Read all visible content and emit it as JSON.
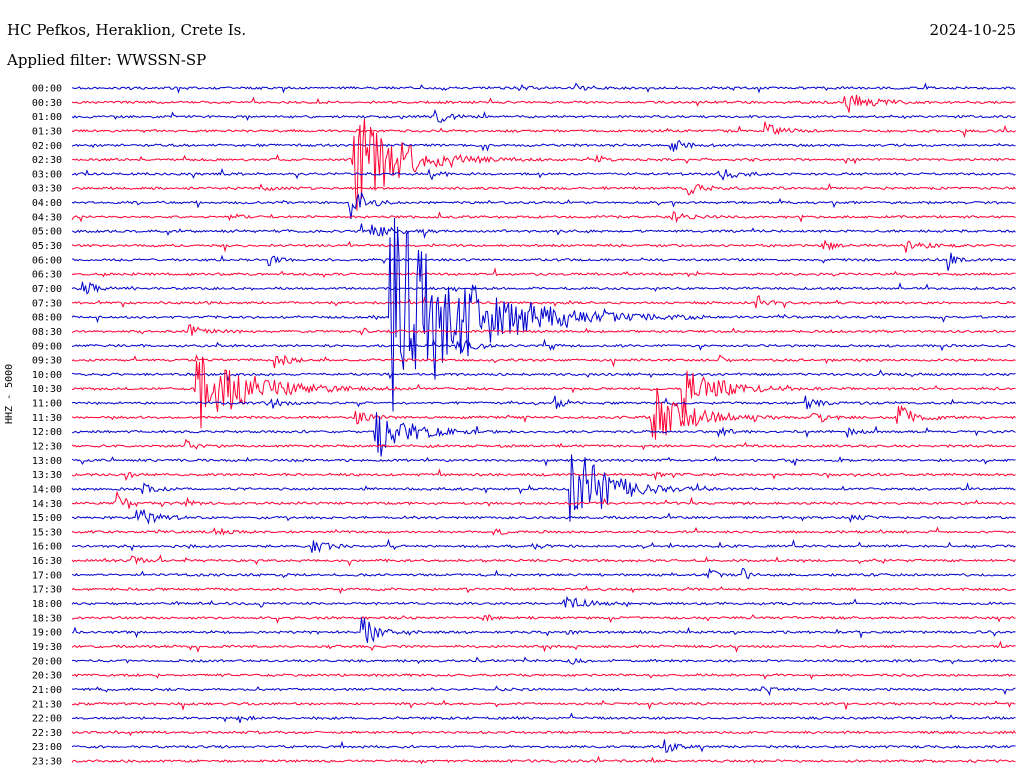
{
  "header": {
    "station": "HC Pefkos, Heraklion, Crete Is.",
    "date": "2024-10-25",
    "filter": "Applied filter: WWSSN-SP",
    "channel": "HHZ - 5000"
  },
  "chart_data": {
    "type": "line",
    "title": "HC Pefkos, Heraklion, Crete Is.",
    "subtitle": "Applied filter: WWSSN-SP",
    "ylabel": "HHZ - 5000",
    "colors": {
      "even": "#0000cc",
      "odd": "#ff0033"
    },
    "rows": [
      "00:00",
      "00:30",
      "01:00",
      "01:30",
      "02:00",
      "02:30",
      "03:00",
      "03:30",
      "04:00",
      "04:30",
      "05:00",
      "05:30",
      "06:00",
      "06:30",
      "07:00",
      "07:30",
      "08:00",
      "08:30",
      "09:00",
      "09:30",
      "10:00",
      "10:30",
      "11:00",
      "11:30",
      "12:00",
      "12:30",
      "13:00",
      "13:30",
      "14:00",
      "14:30",
      "15:00",
      "15:30",
      "16:00",
      "16:30",
      "17:00",
      "17:30",
      "18:00",
      "18:30",
      "19:00",
      "19:30",
      "20:00",
      "20:30",
      "21:00",
      "21:30",
      "22:00",
      "22:30",
      "23:00",
      "23:30"
    ],
    "events": [
      {
        "row": 0,
        "min": 14,
        "amp": 0.3,
        "dur": 0.4
      },
      {
        "row": 0,
        "min": 16,
        "amp": 0.25,
        "dur": 0.4
      },
      {
        "row": 1,
        "min": 24.5,
        "amp": 0.9,
        "dur": 0.8
      },
      {
        "row": 2,
        "min": 11.5,
        "amp": 0.6,
        "dur": 0.5
      },
      {
        "row": 3,
        "min": 22,
        "amp": 0.7,
        "dur": 0.5
      },
      {
        "row": 4,
        "min": 19,
        "amp": 0.5,
        "dur": 0.5
      },
      {
        "row": 5,
        "min": 8.9,
        "amp": 4.5,
        "dur": 1.5
      },
      {
        "row": 5,
        "min": 16.5,
        "amp": 0.4,
        "dur": 0.3
      },
      {
        "row": 6,
        "min": 11.3,
        "amp": 0.5,
        "dur": 0.4
      },
      {
        "row": 6,
        "min": 20.5,
        "amp": 0.6,
        "dur": 0.6
      },
      {
        "row": 7,
        "min": 6,
        "amp": 0.4,
        "dur": 0.3
      },
      {
        "row": 7,
        "min": 19.5,
        "amp": 0.5,
        "dur": 0.6
      },
      {
        "row": 8,
        "min": 8.8,
        "amp": 2.5,
        "dur": 0.4
      },
      {
        "row": 9,
        "min": 5,
        "amp": 0.3,
        "dur": 0.3
      },
      {
        "row": 9,
        "min": 19,
        "amp": 0.5,
        "dur": 0.5
      },
      {
        "row": 10,
        "min": 9.2,
        "amp": 0.8,
        "dur": 0.8
      },
      {
        "row": 11,
        "min": 23.8,
        "amp": 0.4,
        "dur": 0.5
      },
      {
        "row": 11,
        "min": 26.5,
        "amp": 0.5,
        "dur": 0.6
      },
      {
        "row": 12,
        "min": 6.2,
        "amp": 0.5,
        "dur": 0.3
      },
      {
        "row": 12,
        "min": 27.8,
        "amp": 1.2,
        "dur": 0.2
      },
      {
        "row": 14,
        "min": 0.3,
        "amp": 0.6,
        "dur": 0.5
      },
      {
        "row": 15,
        "min": 21.7,
        "amp": 0.7,
        "dur": 0.4
      },
      {
        "row": 16,
        "min": 10.1,
        "amp": 9.0,
        "dur": 2.5
      },
      {
        "row": 16,
        "min": 11.8,
        "amp": 0.5,
        "dur": 0.5
      },
      {
        "row": 17,
        "min": 3.7,
        "amp": 0.6,
        "dur": 0.5
      },
      {
        "row": 18,
        "min": 12.2,
        "amp": 0.8,
        "dur": 0.5
      },
      {
        "row": 18,
        "min": 15,
        "amp": 0.5,
        "dur": 0.4
      },
      {
        "row": 19,
        "min": 6.4,
        "amp": 0.8,
        "dur": 0.4
      },
      {
        "row": 19,
        "min": 20.5,
        "amp": 0.4,
        "dur": 0.3
      },
      {
        "row": 21,
        "min": 3.9,
        "amp": 3.2,
        "dur": 1.8
      },
      {
        "row": 21,
        "min": 19.4,
        "amp": 2.0,
        "dur": 1.2
      },
      {
        "row": 22,
        "min": 6.3,
        "amp": 0.5,
        "dur": 0.4
      },
      {
        "row": 22,
        "min": 15.3,
        "amp": 0.6,
        "dur": 0.4
      },
      {
        "row": 22,
        "min": 23.3,
        "amp": 0.5,
        "dur": 0.4
      },
      {
        "row": 23,
        "min": 18.4,
        "amp": 2.5,
        "dur": 1.2
      },
      {
        "row": 23,
        "min": 23.5,
        "amp": 0.6,
        "dur": 0.5
      },
      {
        "row": 23,
        "min": 26.2,
        "amp": 1.0,
        "dur": 0.6
      },
      {
        "row": 23,
        "min": 9,
        "amp": 0.5,
        "dur": 0.5
      },
      {
        "row": 24,
        "min": 9.6,
        "amp": 2.8,
        "dur": 1.0
      },
      {
        "row": 24,
        "min": 20.5,
        "amp": 0.5,
        "dur": 0.4
      },
      {
        "row": 24,
        "min": 24.6,
        "amp": 0.5,
        "dur": 0.3
      },
      {
        "row": 25,
        "min": 3.6,
        "amp": 0.4,
        "dur": 0.5
      },
      {
        "row": 27,
        "min": 1.7,
        "amp": 0.4,
        "dur": 0.3
      },
      {
        "row": 27,
        "min": 18.5,
        "amp": 0.4,
        "dur": 0.3
      },
      {
        "row": 28,
        "min": 15.8,
        "amp": 4.0,
        "dur": 1.2
      },
      {
        "row": 28,
        "min": 2.2,
        "amp": 0.4,
        "dur": 0.5
      },
      {
        "row": 29,
        "min": 1.3,
        "amp": 1.5,
        "dur": 0.4
      },
      {
        "row": 29,
        "min": 3.6,
        "amp": 0.4,
        "dur": 0.3
      },
      {
        "row": 30,
        "min": 2.0,
        "amp": 1.2,
        "dur": 0.6
      },
      {
        "row": 30,
        "min": 24.7,
        "amp": 0.4,
        "dur": 0.4
      },
      {
        "row": 31,
        "min": 4.5,
        "amp": 0.4,
        "dur": 0.4
      },
      {
        "row": 31,
        "min": 13.3,
        "amp": 0.4,
        "dur": 0.3
      },
      {
        "row": 32,
        "min": 7.6,
        "amp": 0.6,
        "dur": 0.5
      },
      {
        "row": 32,
        "min": 14.6,
        "amp": 0.3,
        "dur": 0.3
      },
      {
        "row": 33,
        "min": 1.9,
        "amp": 0.3,
        "dur": 0.4
      },
      {
        "row": 34,
        "min": 20.2,
        "amp": 0.5,
        "dur": 0.3
      },
      {
        "row": 34,
        "min": 21.3,
        "amp": 0.5,
        "dur": 0.3
      },
      {
        "row": 36,
        "min": 15.6,
        "amp": 0.8,
        "dur": 0.6
      },
      {
        "row": 37,
        "min": 13.0,
        "amp": 0.4,
        "dur": 0.3
      },
      {
        "row": 38,
        "min": 9.2,
        "amp": 1.2,
        "dur": 0.6
      },
      {
        "row": 38,
        "min": 15.6,
        "amp": 0.3,
        "dur": 0.3
      },
      {
        "row": 40,
        "min": 15.8,
        "amp": 0.3,
        "dur": 0.3
      },
      {
        "row": 42,
        "min": 21.9,
        "amp": 0.3,
        "dur": 0.3
      },
      {
        "row": 44,
        "min": 5.2,
        "amp": 0.6,
        "dur": 0.3
      },
      {
        "row": 46,
        "min": 18.8,
        "amp": 0.6,
        "dur": 0.4
      }
    ]
  }
}
